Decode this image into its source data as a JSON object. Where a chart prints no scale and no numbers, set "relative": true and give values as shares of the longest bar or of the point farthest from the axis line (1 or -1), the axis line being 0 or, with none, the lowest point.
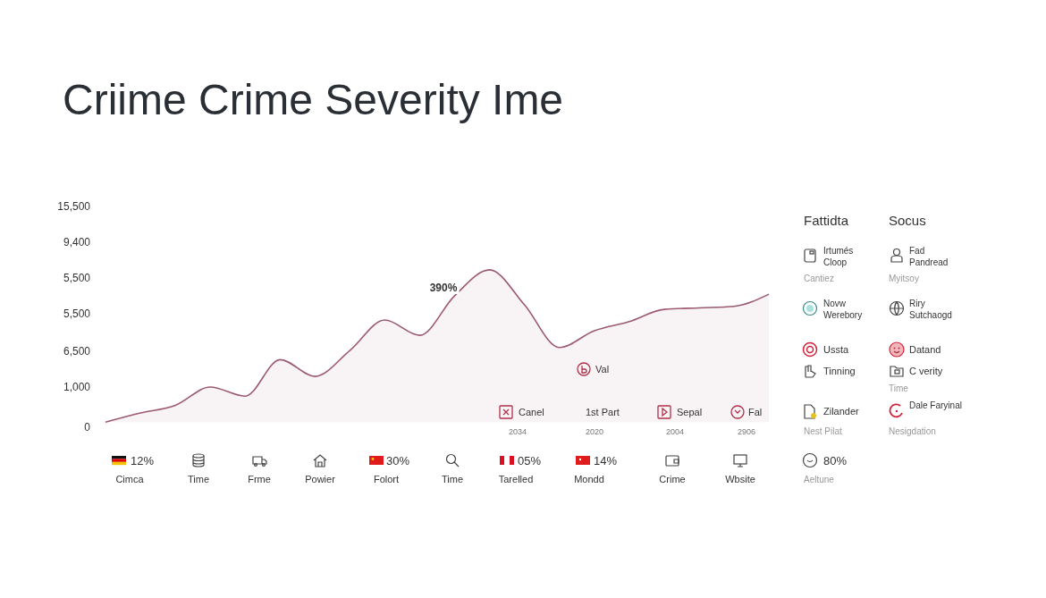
{
  "chart_data": {
    "type": "area",
    "title": "Criime Crime Severity Ime",
    "categories": [
      null,
      null,
      null,
      null,
      null,
      null,
      null,
      null,
      null,
      null,
      null,
      null,
      null,
      null,
      null,
      null,
      null,
      null,
      null,
      null
    ],
    "series": [
      {
        "color": "#9b5a6e",
        "values": [
          0,
          0.06,
          0.11,
          0.23,
          0.17,
          0.41,
          0.3,
          0.47,
          0.67,
          0.57,
          0.83,
          1,
          0.77,
          0.49,
          0.6,
          0.66,
          0.74,
          0.75,
          0.76,
          0.84
        ]
      }
    ],
    "relative": true,
    "annotations": [
      "390%",
      "Canel",
      "2034",
      "Val",
      "1st Part",
      "2020",
      "Sepal",
      "2004",
      "Fal",
      "2906",
      "12%",
      "Cimca",
      "Time",
      "Frme",
      "Powier",
      "30%",
      "Folort",
      "Time",
      "05%",
      "Tarelled",
      "14%",
      "Mondd",
      "Crime",
      "Wbsite",
      "Fattidta",
      "Socus",
      "Irtumés Cloop",
      "Cantiez",
      "Fad Pandread",
      "Myitsoy",
      "Novw Werebory",
      "Riry Sutchaogd",
      "Ussta",
      "Datand",
      "Tinning",
      "C verity",
      "Time",
      "Zilander",
      "Dale Faryinal",
      "Nest Pilat",
      "Nesigdation",
      "80%",
      "Aeltune",
      "15,500",
      "9,400",
      "5,500",
      "5,500",
      "6,500",
      "1,000",
      "0"
    ]
  }
}
